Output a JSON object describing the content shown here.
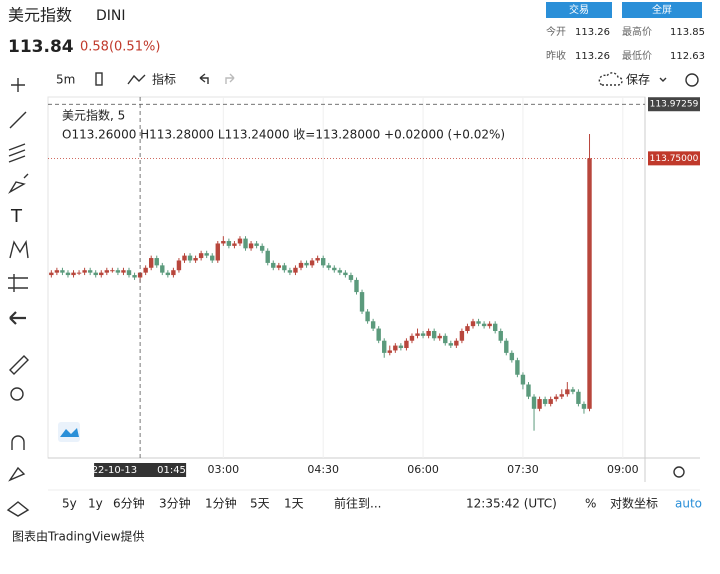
{
  "header": {
    "name": "美元指数",
    "symbol": "DINI",
    "price": "113.84",
    "change": "0.58(0.51%)",
    "buttons": [
      "交易",
      "全屏"
    ],
    "stats": [
      {
        "label": "今开",
        "value": "113.26"
      },
      {
        "label": "最高价",
        "value": "113.85"
      },
      {
        "label": "昨收",
        "value": "113.26"
      },
      {
        "label": "最低价",
        "value": "112.63"
      }
    ]
  },
  "toolbar": {
    "interval": "5m",
    "indicators": "指标",
    "save": "保存"
  },
  "legend": {
    "title": "美元指数, 5",
    "ohlc": "O113.26000  H113.28000  L113.24000  收=113.28000  +0.02000 (+0.02%)"
  },
  "chart_data": {
    "type": "candlestick",
    "up_color": "#b8463c",
    "down_color": "#5b9a7c",
    "x": [
      25,
      30,
      35,
      40,
      45,
      50,
      55,
      60,
      65,
      70,
      75,
      80,
      85,
      90,
      95,
      100,
      105,
      110,
      115,
      120,
      125,
      130,
      135,
      140,
      145,
      150,
      155,
      160,
      165,
      170,
      175,
      180,
      185,
      190,
      195,
      200,
      205,
      210,
      215,
      220,
      225,
      230,
      235,
      240,
      245,
      250,
      255,
      260,
      265,
      270,
      275,
      280,
      285,
      290,
      295,
      300,
      305,
      310,
      315,
      320,
      325,
      330,
      335,
      340,
      345,
      350,
      355,
      360,
      365,
      370,
      375,
      380,
      385,
      390,
      395,
      400,
      405,
      410,
      415,
      420,
      425,
      430,
      435,
      440,
      445,
      450,
      455,
      460,
      465,
      470,
      475,
      480,
      485,
      490,
      495,
      500,
      505,
      510
    ],
    "open": [
      113.27,
      113.28,
      113.29,
      113.28,
      113.27,
      113.28,
      113.28,
      113.29,
      113.28,
      113.27,
      113.28,
      113.29,
      113.29,
      113.28,
      113.29,
      113.27,
      113.26,
      113.28,
      113.3,
      113.34,
      113.31,
      113.28,
      113.27,
      113.29,
      113.33,
      113.35,
      113.33,
      113.34,
      113.36,
      113.35,
      113.33,
      113.4,
      113.41,
      113.39,
      113.4,
      113.42,
      113.38,
      113.4,
      113.39,
      113.37,
      113.32,
      113.3,
      113.31,
      113.29,
      113.28,
      113.3,
      113.32,
      113.31,
      113.33,
      113.34,
      113.31,
      113.3,
      113.29,
      113.28,
      113.27,
      113.25,
      113.2,
      113.12,
      113.08,
      113.05,
      113.0,
      112.95,
      112.96,
      112.98,
      112.97,
      113.0,
      113.02,
      113.03,
      113.02,
      113.04,
      113.01,
      113.02,
      112.99,
      112.98,
      113.0,
      113.04,
      113.06,
      113.08,
      113.07,
      113.06,
      113.07,
      113.04,
      113.0,
      112.95,
      112.92,
      112.86,
      112.82,
      112.77,
      112.72,
      112.76,
      112.74,
      112.76,
      112.77,
      112.78,
      112.8,
      112.79,
      112.74,
      112.72
    ],
    "high": [
      113.29,
      113.3,
      113.3,
      113.29,
      113.29,
      113.29,
      113.3,
      113.3,
      113.29,
      113.29,
      113.3,
      113.3,
      113.3,
      113.3,
      113.3,
      113.28,
      113.28,
      113.31,
      113.35,
      113.35,
      113.32,
      113.29,
      113.3,
      113.34,
      113.36,
      113.36,
      113.35,
      113.37,
      113.37,
      113.36,
      113.41,
      113.43,
      113.42,
      113.41,
      113.43,
      113.43,
      113.41,
      113.41,
      113.4,
      113.38,
      113.33,
      113.32,
      113.32,
      113.3,
      113.31,
      113.33,
      113.33,
      113.34,
      113.35,
      113.35,
      113.32,
      113.31,
      113.3,
      113.29,
      113.28,
      113.26,
      113.21,
      113.13,
      113.09,
      113.06,
      113.01,
      112.98,
      112.99,
      112.99,
      113.01,
      113.03,
      113.05,
      113.04,
      113.05,
      113.05,
      113.03,
      113.03,
      113.0,
      113.01,
      113.05,
      113.07,
      113.09,
      113.09,
      113.08,
      113.08,
      113.08,
      113.05,
      113.01,
      112.96,
      112.93,
      112.87,
      112.83,
      112.78,
      112.77,
      112.77,
      112.77,
      112.78,
      112.8,
      112.83,
      112.81,
      112.8,
      112.75,
      113.85
    ],
    "low": [
      113.26,
      113.27,
      113.27,
      113.26,
      113.26,
      113.27,
      113.27,
      113.27,
      113.26,
      113.26,
      113.27,
      113.28,
      113.27,
      113.27,
      113.26,
      113.25,
      113.24,
      113.27,
      113.29,
      113.3,
      113.27,
      113.26,
      113.26,
      113.28,
      113.32,
      113.32,
      113.32,
      113.33,
      113.34,
      113.32,
      113.32,
      113.39,
      113.38,
      113.38,
      113.39,
      113.37,
      113.37,
      113.38,
      113.36,
      113.31,
      113.29,
      113.29,
      113.28,
      113.27,
      113.27,
      113.29,
      113.3,
      113.3,
      113.32,
      113.3,
      113.29,
      113.28,
      113.27,
      113.26,
      113.24,
      113.19,
      113.11,
      113.07,
      113.04,
      112.99,
      112.93,
      112.94,
      112.95,
      112.96,
      112.96,
      112.99,
      113.01,
      113.01,
      113.01,
      113.0,
      113.0,
      112.98,
      112.97,
      112.97,
      112.99,
      113.03,
      113.05,
      113.06,
      113.05,
      113.05,
      113.03,
      112.99,
      112.94,
      112.91,
      112.85,
      112.8,
      112.76,
      112.63,
      112.71,
      112.73,
      112.73,
      112.75,
      112.76,
      112.77,
      112.78,
      112.73,
      112.7,
      112.71
    ],
    "close": [
      113.28,
      113.29,
      113.28,
      113.27,
      113.28,
      113.28,
      113.29,
      113.28,
      113.27,
      113.28,
      113.29,
      113.29,
      113.28,
      113.29,
      113.27,
      113.26,
      113.28,
      113.3,
      113.34,
      113.31,
      113.28,
      113.27,
      113.29,
      113.33,
      113.35,
      113.33,
      113.34,
      113.36,
      113.35,
      113.33,
      113.4,
      113.41,
      113.39,
      113.4,
      113.42,
      113.38,
      113.4,
      113.39,
      113.37,
      113.32,
      113.3,
      113.31,
      113.29,
      113.28,
      113.3,
      113.32,
      113.31,
      113.33,
      113.34,
      113.31,
      113.3,
      113.29,
      113.28,
      113.27,
      113.25,
      113.2,
      113.12,
      113.08,
      113.05,
      113.0,
      112.95,
      112.96,
      112.98,
      112.97,
      113.0,
      113.02,
      113.03,
      113.02,
      113.04,
      113.01,
      113.02,
      112.99,
      112.98,
      113.0,
      113.04,
      113.06,
      113.08,
      113.07,
      113.06,
      113.07,
      113.04,
      113.0,
      112.95,
      112.92,
      112.86,
      112.82,
      112.77,
      112.72,
      112.76,
      112.74,
      112.76,
      112.77,
      112.78,
      112.8,
      112.79,
      112.74,
      112.72,
      113.75
    ],
    "xlim": [
      22,
      560
    ],
    "ylim": [
      112.53,
      113.99
    ],
    "xticks": [
      {
        "value": 180,
        "label": "03:00"
      },
      {
        "value": 270,
        "label": "04:30"
      },
      {
        "value": 360,
        "label": "06:00"
      },
      {
        "value": 450,
        "label": "07:30"
      },
      {
        "value": 540,
        "label": "09:00"
      }
    ],
    "yticks": [
      113.97259,
      {
        "value": 113.75,
        "label": "113.75000"
      }
    ],
    "crosshair": {
      "value": 105,
      "date": "2022-10-13",
      "time": "01:45"
    }
  },
  "bottom_bar": {
    "ranges": [
      "5y",
      "1y",
      "6分钟",
      "3分钟",
      "1分钟",
      "5天",
      "1天"
    ],
    "goto": "前往到...",
    "clock": "12:35:42 (UTC)",
    "percent": "%",
    "log": "对数坐标",
    "auto": "auto"
  },
  "footer": "图表由TradingView提供"
}
